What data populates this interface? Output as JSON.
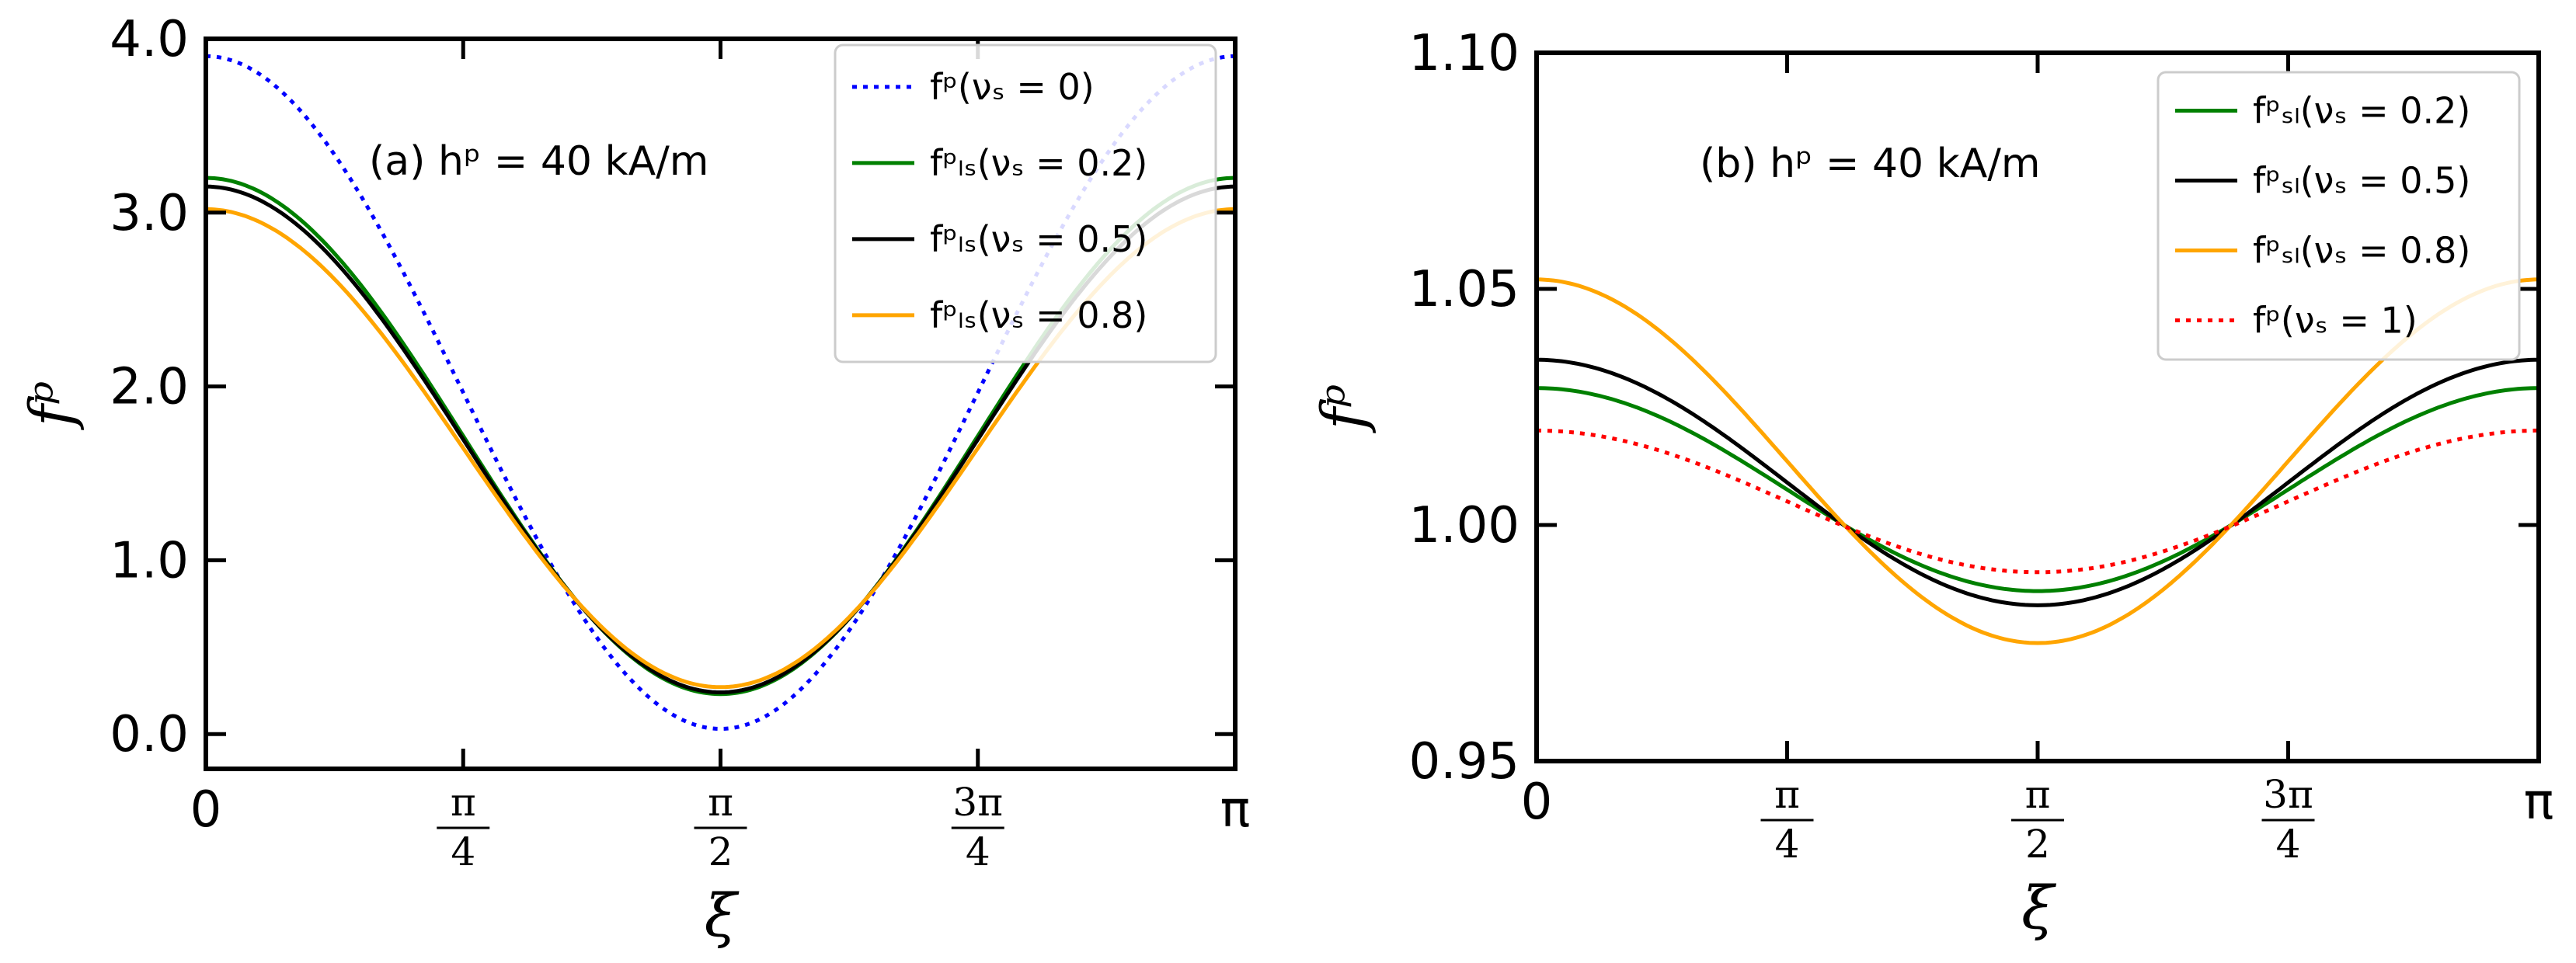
{
  "chart_data": [
    {
      "type": "line",
      "panel": "a",
      "annotation": "(a) hᵖ = 40 kA/m",
      "xlabel": "ξ",
      "ylabel": "fᵖ",
      "xlim": [
        0,
        3.14159
      ],
      "ylim": [
        -0.2,
        4.0
      ],
      "yticks": [
        0.0,
        1.0,
        2.0,
        3.0,
        4.0
      ],
      "ytick_labels": [
        "0.0",
        "1.0",
        "2.0",
        "3.0",
        "4.0"
      ],
      "xticks": [
        0,
        0.7854,
        1.5708,
        2.3562,
        3.14159
      ],
      "xtick_labels": [
        {
          "type": "text",
          "text": "0"
        },
        {
          "type": "frac",
          "num": "π",
          "den": "4"
        },
        {
          "type": "frac",
          "num": "π",
          "den": "2"
        },
        {
          "type": "frac",
          "num": "3π",
          "den": "4"
        },
        {
          "type": "text",
          "text": "π"
        }
      ],
      "legend_position": "top-right",
      "series": [
        {
          "name": "fᵖ(νₛ = 0)",
          "color": "#0000ff",
          "style": "dotted",
          "max": 3.9,
          "min": 0.03
        },
        {
          "name": "fᵖₗₛ(νₛ = 0.2)",
          "color": "#008000",
          "style": "solid",
          "max": 3.2,
          "min": 0.23
        },
        {
          "name": "fᵖₗₛ(νₛ = 0.5)",
          "color": "#000000",
          "style": "solid",
          "max": 3.15,
          "min": 0.24
        },
        {
          "name": "fᵖₗₛ(νₛ = 0.8)",
          "color": "#ffa500",
          "style": "solid",
          "max": 3.02,
          "min": 0.27
        }
      ]
    },
    {
      "type": "line",
      "panel": "b",
      "annotation": "(b) hᵖ = 40 kA/m",
      "xlabel": "ξ",
      "ylabel": "fᵖ",
      "xlim": [
        0,
        3.14159
      ],
      "ylim": [
        0.95,
        1.1
      ],
      "yticks": [
        0.95,
        1.0,
        1.05,
        1.1
      ],
      "ytick_labels": [
        "0.95",
        "1.00",
        "1.05",
        "1.10"
      ],
      "xticks": [
        0,
        0.7854,
        1.5708,
        2.3562,
        3.14159
      ],
      "xtick_labels": [
        {
          "type": "text",
          "text": "0"
        },
        {
          "type": "frac",
          "num": "π",
          "den": "4"
        },
        {
          "type": "frac",
          "num": "π",
          "den": "2"
        },
        {
          "type": "frac",
          "num": "3π",
          "den": "4"
        },
        {
          "type": "text",
          "text": "π"
        }
      ],
      "legend_position": "top-right",
      "series": [
        {
          "name": "fᵖₛₗ(νₛ = 0.2)",
          "color": "#008000",
          "style": "solid",
          "max": 1.029,
          "min": 0.986
        },
        {
          "name": "fᵖₛₗ(νₛ = 0.5)",
          "color": "#000000",
          "style": "solid",
          "max": 1.035,
          "min": 0.983
        },
        {
          "name": "fᵖₛₗ(νₛ = 0.8)",
          "color": "#ffa500",
          "style": "solid",
          "max": 1.052,
          "min": 0.975
        },
        {
          "name": "fᵖ(νₛ = 1)",
          "color": "#ff0000",
          "style": "dotted",
          "max": 1.02,
          "min": 0.99
        }
      ]
    }
  ]
}
